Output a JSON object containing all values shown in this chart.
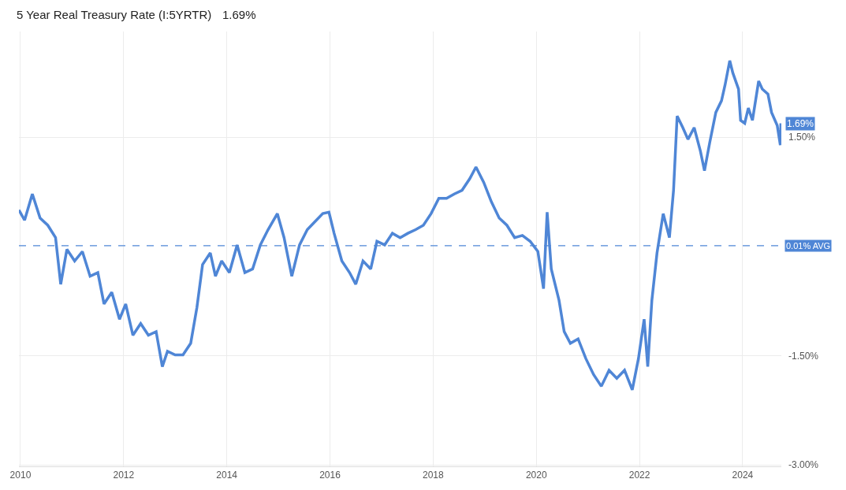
{
  "chart_data": {
    "type": "line",
    "title": "5 Year Real Treasury Rate (I:5YRTR)",
    "subtitle": "1.69%",
    "x": [
      2009.97,
      2010.08,
      2010.23,
      2010.38,
      2010.53,
      2010.68,
      2010.78,
      2010.9,
      2011.05,
      2011.2,
      2011.35,
      2011.5,
      2011.62,
      2011.77,
      2011.92,
      2012.04,
      2012.18,
      2012.33,
      2012.48,
      2012.63,
      2012.75,
      2012.85,
      2013.0,
      2013.15,
      2013.3,
      2013.42,
      2013.53,
      2013.68,
      2013.78,
      2013.9,
      2014.05,
      2014.2,
      2014.35,
      2014.5,
      2014.65,
      2014.8,
      2014.98,
      2015.11,
      2015.26,
      2015.41,
      2015.56,
      2015.71,
      2015.86,
      2015.98,
      2016.08,
      2016.23,
      2016.38,
      2016.5,
      2016.64,
      2016.79,
      2016.91,
      2017.06,
      2017.21,
      2017.36,
      2017.51,
      2017.66,
      2017.81,
      2017.96,
      2018.11,
      2018.26,
      2018.41,
      2018.56,
      2018.71,
      2018.83,
      2018.98,
      2019.13,
      2019.28,
      2019.43,
      2019.58,
      2019.73,
      2019.88,
      2020.03,
      2020.14,
      2020.21,
      2020.29,
      2020.44,
      2020.54,
      2020.66,
      2020.81,
      2020.96,
      2021.11,
      2021.26,
      2021.41,
      2021.56,
      2021.71,
      2021.86,
      2021.98,
      2022.09,
      2022.16,
      2022.24,
      2022.34,
      2022.46,
      2022.58,
      2022.66,
      2022.73,
      2022.84,
      2022.94,
      2023.06,
      2023.18,
      2023.26,
      2023.36,
      2023.48,
      2023.59,
      2023.66,
      2023.75,
      2023.81,
      2023.92,
      2023.96,
      2024.04,
      2024.11,
      2024.19,
      2024.31,
      2024.38,
      2024.49,
      2024.56,
      2024.67,
      2024.73,
      2024.74
    ],
    "series": [
      {
        "color": "#4f86d6",
        "values": [
          0.5,
          0.36,
          0.72,
          0.39,
          0.29,
          0.12,
          -0.52,
          -0.04,
          -0.2,
          -0.07,
          -0.41,
          -0.36,
          -0.79,
          -0.63,
          -1.0,
          -0.79,
          -1.22,
          -1.06,
          -1.22,
          -1.17,
          -1.65,
          -1.44,
          -1.49,
          -1.49,
          -1.33,
          -0.84,
          -0.25,
          -0.09,
          -0.41,
          -0.2,
          -0.36,
          0.02,
          -0.36,
          -0.31,
          0.02,
          0.23,
          0.45,
          0.12,
          -0.41,
          0.02,
          0.23,
          0.34,
          0.45,
          0.47,
          0.18,
          -0.2,
          -0.36,
          -0.52,
          -0.2,
          -0.31,
          0.07,
          0.02,
          0.18,
          0.12,
          0.18,
          0.23,
          0.29,
          0.45,
          0.66,
          0.66,
          0.72,
          0.77,
          0.93,
          1.09,
          0.88,
          0.61,
          0.39,
          0.29,
          0.12,
          0.15,
          0.07,
          -0.07,
          -0.58,
          0.47,
          -0.31,
          -0.74,
          -1.17,
          -1.33,
          -1.27,
          -1.54,
          -1.76,
          -1.92,
          -1.7,
          -1.81,
          -1.7,
          -1.97,
          -1.54,
          -1.0,
          -1.65,
          -0.74,
          -0.09,
          0.45,
          0.12,
          0.77,
          1.79,
          1.63,
          1.47,
          1.63,
          1.31,
          1.04,
          1.42,
          1.84,
          2.0,
          2.22,
          2.55,
          2.38,
          2.16,
          1.73,
          1.69,
          1.9,
          1.73,
          2.27,
          2.16,
          2.09,
          1.84,
          1.66,
          1.39,
          1.69
        ]
      }
    ],
    "xlim": [
      2009.97,
      2024.75
    ],
    "xticks": [
      2010,
      2012,
      2014,
      2016,
      2018,
      2020,
      2022,
      2024
    ],
    "ylim": [
      -3.02,
      2.95
    ],
    "yticks": [
      {
        "value": 1.5,
        "label": "1.50%"
      },
      {
        "value": -1.5,
        "label": "-1.50%"
      },
      {
        "value": -3.0,
        "label": "-3.00%"
      }
    ],
    "grid": true,
    "marker": "none",
    "line_style": "solid",
    "ref_lines": [
      {
        "axis": "y",
        "value": 0.01,
        "label": "0.01% AVG",
        "color": "#4f86d6",
        "line_style": "dashed"
      }
    ],
    "annotations": [
      {
        "text": "1.69%",
        "x": 2024.74,
        "y": 1.69
      }
    ]
  }
}
